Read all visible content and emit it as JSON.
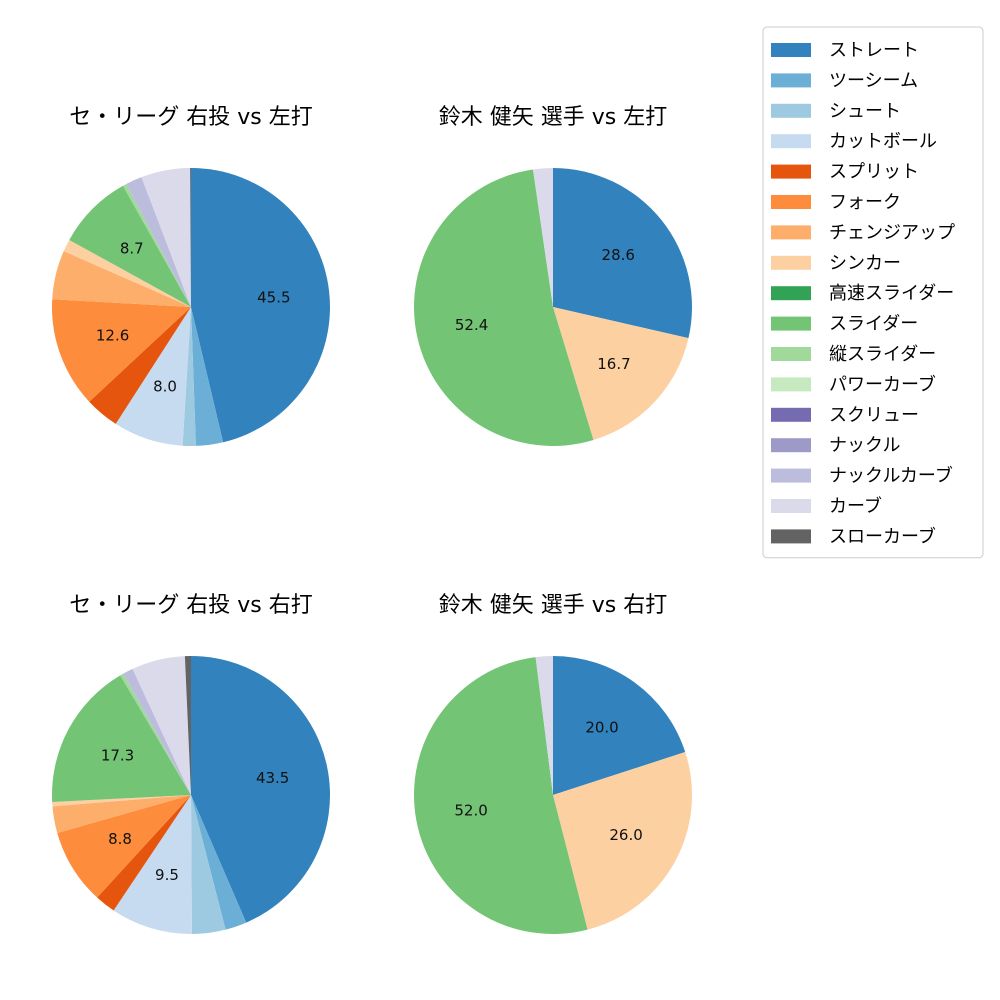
{
  "legend": {
    "placement": "right",
    "items": [
      {
        "label": "ストレート",
        "color": "#3182bd"
      },
      {
        "label": "ツーシーム",
        "color": "#6baed6"
      },
      {
        "label": "シュート",
        "color": "#9ecae1"
      },
      {
        "label": "カットボール",
        "color": "#c6dbef"
      },
      {
        "label": "スプリット",
        "color": "#e6550d"
      },
      {
        "label": "フォーク",
        "color": "#fd8d3c"
      },
      {
        "label": "チェンジアップ",
        "color": "#fdae6b"
      },
      {
        "label": "シンカー",
        "color": "#fdd0a2"
      },
      {
        "label": "高速スライダー",
        "color": "#31a354"
      },
      {
        "label": "スライダー",
        "color": "#74c476"
      },
      {
        "label": "縦スライダー",
        "color": "#a1d99b"
      },
      {
        "label": "パワーカーブ",
        "color": "#c7e9c0"
      },
      {
        "label": "スクリュー",
        "color": "#756bb1"
      },
      {
        "label": "ナックル",
        "color": "#9e9ac8"
      },
      {
        "label": "ナックルカーブ",
        "color": "#bcbddc"
      },
      {
        "label": "カーブ",
        "color": "#dadaeb"
      },
      {
        "label": "スローカーブ",
        "color": "#636363"
      }
    ]
  },
  "chart_data": [
    {
      "type": "pie",
      "title": "セ・リーグ 右投 vs 左打",
      "categories": [
        "ストレート",
        "ツーシーム",
        "シュート",
        "カットボール",
        "スプリット",
        "フォーク",
        "チェンジアップ",
        "シンカー",
        "高速スライダー",
        "スライダー",
        "縦スライダー",
        "パワーカーブ",
        "スクリュー",
        "ナックル",
        "ナックルカーブ",
        "カーブ",
        "スローカーブ"
      ],
      "values": [
        45.5,
        3.1,
        1.5,
        8.0,
        3.9,
        12.6,
        5.6,
        1.4,
        0,
        8.7,
        0.4,
        0,
        0,
        0,
        1.9,
        5.6,
        0.1
      ],
      "labels_shown": [
        "45.5",
        "",
        "",
        "8.0",
        "",
        "12.6",
        "",
        "",
        "",
        "8.7",
        "",
        "",
        "",
        "",
        "",
        "",
        ""
      ]
    },
    {
      "type": "pie",
      "title": "鈴木 健矢 選手 vs 左打",
      "categories": [
        "ストレート",
        "シンカー",
        "スライダー",
        "カーブ"
      ],
      "values": [
        28.6,
        16.7,
        52.4,
        2.3
      ],
      "labels_shown": [
        "28.6",
        "16.7",
        "52.4",
        ""
      ]
    },
    {
      "type": "pie",
      "title": "セ・リーグ 右投 vs 右打",
      "categories": [
        "ストレート",
        "ツーシーム",
        "シュート",
        "カットボール",
        "スプリット",
        "フォーク",
        "チェンジアップ",
        "シンカー",
        "高速スライダー",
        "スライダー",
        "縦スライダー",
        "パワーカーブ",
        "スクリュー",
        "ナックル",
        "ナックルカーブ",
        "カーブ",
        "スローカーブ"
      ],
      "values": [
        43.5,
        2.5,
        3.9,
        9.5,
        2.4,
        8.8,
        3.1,
        0.5,
        0,
        17.3,
        0.4,
        0,
        0,
        0,
        1.2,
        6.2,
        0.7
      ],
      "labels_shown": [
        "43.5",
        "",
        "",
        "9.5",
        "",
        "8.8",
        "",
        "",
        "",
        "17.3",
        "",
        "",
        "",
        "",
        "",
        "",
        ""
      ]
    },
    {
      "type": "pie",
      "title": "鈴木 健矢 選手 vs 右打",
      "categories": [
        "ストレート",
        "シンカー",
        "スライダー",
        "カーブ"
      ],
      "values": [
        20.0,
        26.0,
        52.0,
        2.0
      ],
      "labels_shown": [
        "20.0",
        "26.0",
        "52.0",
        ""
      ]
    }
  ]
}
